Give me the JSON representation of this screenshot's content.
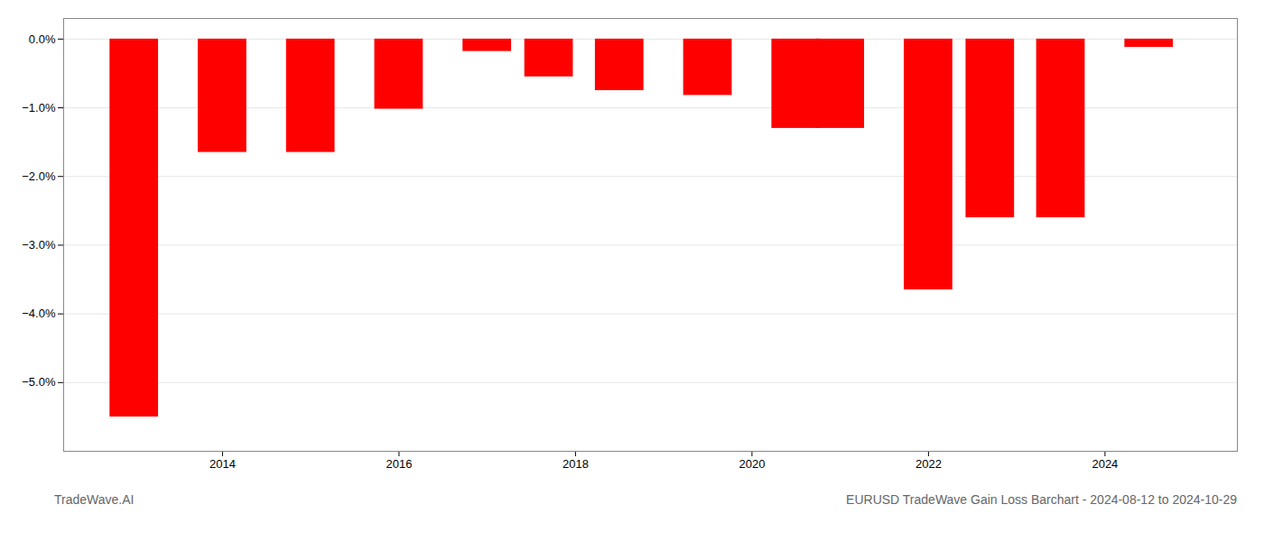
{
  "chart_data": {
    "type": "bar",
    "title": "EURUSD TradeWave Gain Loss Barchart - 2024-08-12 to 2024-10-29",
    "annotations": [
      "TradeWave.AI"
    ],
    "x": [
      2013,
      2014,
      2015,
      2016,
      2017,
      2017.7,
      2018.5,
      2019.5,
      2020.5,
      2021,
      2022,
      2022.7,
      2023.5,
      2024.5
    ],
    "values": [
      -5.5,
      -1.65,
      -1.65,
      -1.02,
      -0.18,
      -0.55,
      -0.75,
      -0.82,
      -1.3,
      -1.3,
      -3.65,
      -2.6,
      -2.6,
      -0.12
    ],
    "color": "#ff0000",
    "xlim": [
      2012.2,
      2025.5
    ],
    "xticks": [
      2014,
      2016,
      2018,
      2020,
      2022,
      2024
    ],
    "ylim": [
      -6.0,
      0.3
    ],
    "yticks": [
      {
        "value": 0.0,
        "label": "0.0%"
      },
      {
        "value": -1.0,
        "label": "−1.0%"
      },
      {
        "value": -2.0,
        "label": "−2.0%"
      },
      {
        "value": -3.0,
        "label": "−3.0%"
      },
      {
        "value": -4.0,
        "label": "−4.0%"
      },
      {
        "value": -5.0,
        "label": "−5.0%"
      }
    ],
    "grid": true
  }
}
